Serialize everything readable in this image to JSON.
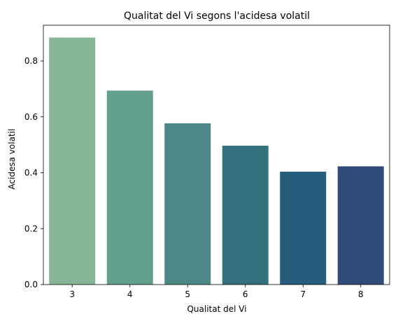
{
  "chart_data": {
    "type": "bar",
    "title": "Qualitat del Vi segons l'acidesa volatil",
    "xlabel": "Qualitat del Vi",
    "ylabel": "Acidesa volatil",
    "categories": [
      "3",
      "4",
      "5",
      "6",
      "7",
      "8"
    ],
    "values": [
      0.884,
      0.694,
      0.577,
      0.497,
      0.404,
      0.423
    ],
    "ylim": [
      0,
      0.928
    ],
    "yticks": [
      "0.0",
      "0.2",
      "0.4",
      "0.6",
      "0.8"
    ],
    "colors": [
      "#86b596",
      "#629f8e",
      "#4b8886",
      "#357280",
      "#265c7c",
      "#2f4b78"
    ],
    "grid": false,
    "legend": "none"
  }
}
